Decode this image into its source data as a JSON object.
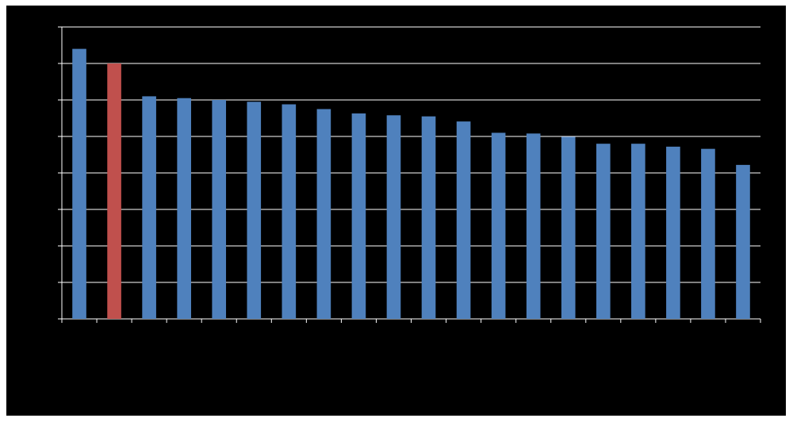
{
  "chart_data": {
    "type": "bar",
    "title": "",
    "xlabel": "",
    "ylabel": "",
    "categories": [
      "",
      "",
      "",
      "",
      "",
      "",
      "",
      "",
      "",
      "",
      "",
      "",
      "",
      "",
      "",
      "",
      "",
      "",
      "",
      ""
    ],
    "values": [
      7.4,
      7.0,
      6.1,
      6.05,
      6.0,
      5.95,
      5.88,
      5.75,
      5.63,
      5.58,
      5.55,
      5.41,
      5.1,
      5.08,
      4.99,
      4.8,
      4.8,
      4.72,
      4.66,
      4.22
    ],
    "highlight_index": 1,
    "ylim": [
      0,
      8
    ],
    "ytick_step": 1,
    "grid": true,
    "legend": "none",
    "colors": {
      "bar": "#4f81bd",
      "highlight": "#c0504d",
      "background": "#000000",
      "grid": "#ffffff",
      "axis": "#ffffff"
    }
  }
}
